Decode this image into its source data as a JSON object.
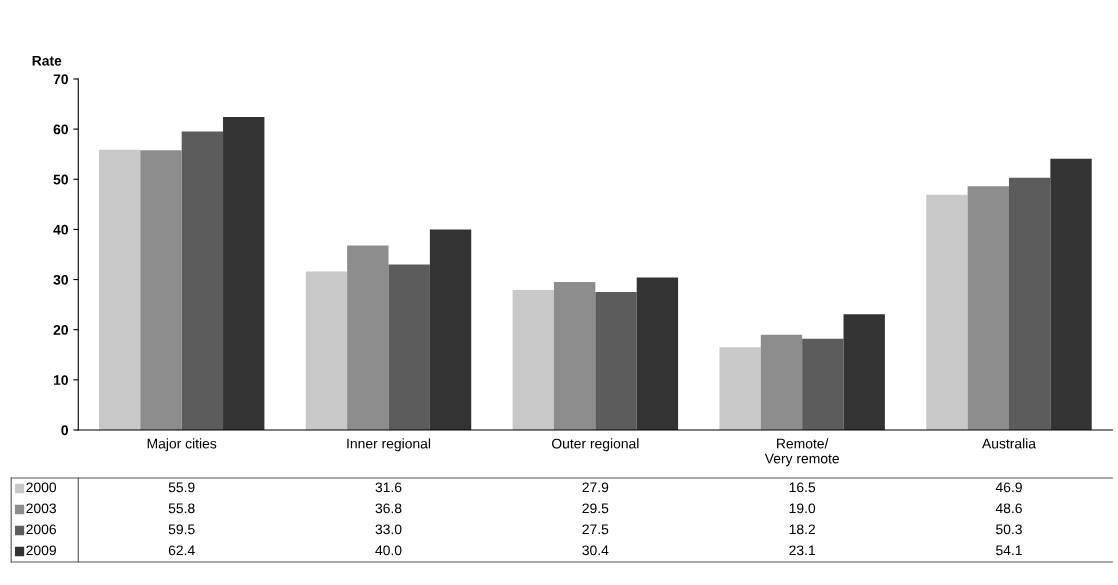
{
  "chart_data": {
    "type": "bar",
    "ylabel": "Rate",
    "categories": [
      "Major cities",
      "Inner regional",
      "Outer regional",
      "Remote/\nVery remote",
      "Australia"
    ],
    "series": [
      {
        "name": "2000",
        "color": "#c8c8c8",
        "values": [
          55.9,
          31.6,
          27.9,
          16.5,
          46.9
        ],
        "value_labels": [
          "55.9",
          "31.6",
          "27.9",
          "16.5",
          "46.9"
        ]
      },
      {
        "name": "2003",
        "color": "#8c8c8c",
        "values": [
          55.8,
          36.8,
          29.5,
          19.0,
          48.6
        ],
        "value_labels": [
          "55.8",
          "36.8",
          "29.5",
          "19.0",
          "48.6"
        ]
      },
      {
        "name": "2006",
        "color": "#5c5c5c",
        "values": [
          59.5,
          33.0,
          27.5,
          18.2,
          50.3
        ],
        "value_labels": [
          "59.5",
          "33.0",
          "27.5",
          "18.2",
          "50.3"
        ]
      },
      {
        "name": "2009",
        "color": "#333333",
        "values": [
          62.4,
          40.0,
          30.4,
          23.1,
          54.1
        ],
        "value_labels": [
          "62.4",
          "40.0",
          "30.4",
          "23.1",
          "54.1"
        ]
      }
    ],
    "ylim": [
      0,
      70
    ],
    "yticks": [
      0,
      10,
      20,
      30,
      40,
      50,
      60,
      70
    ],
    "grid": false,
    "legend": "bottom left"
  }
}
